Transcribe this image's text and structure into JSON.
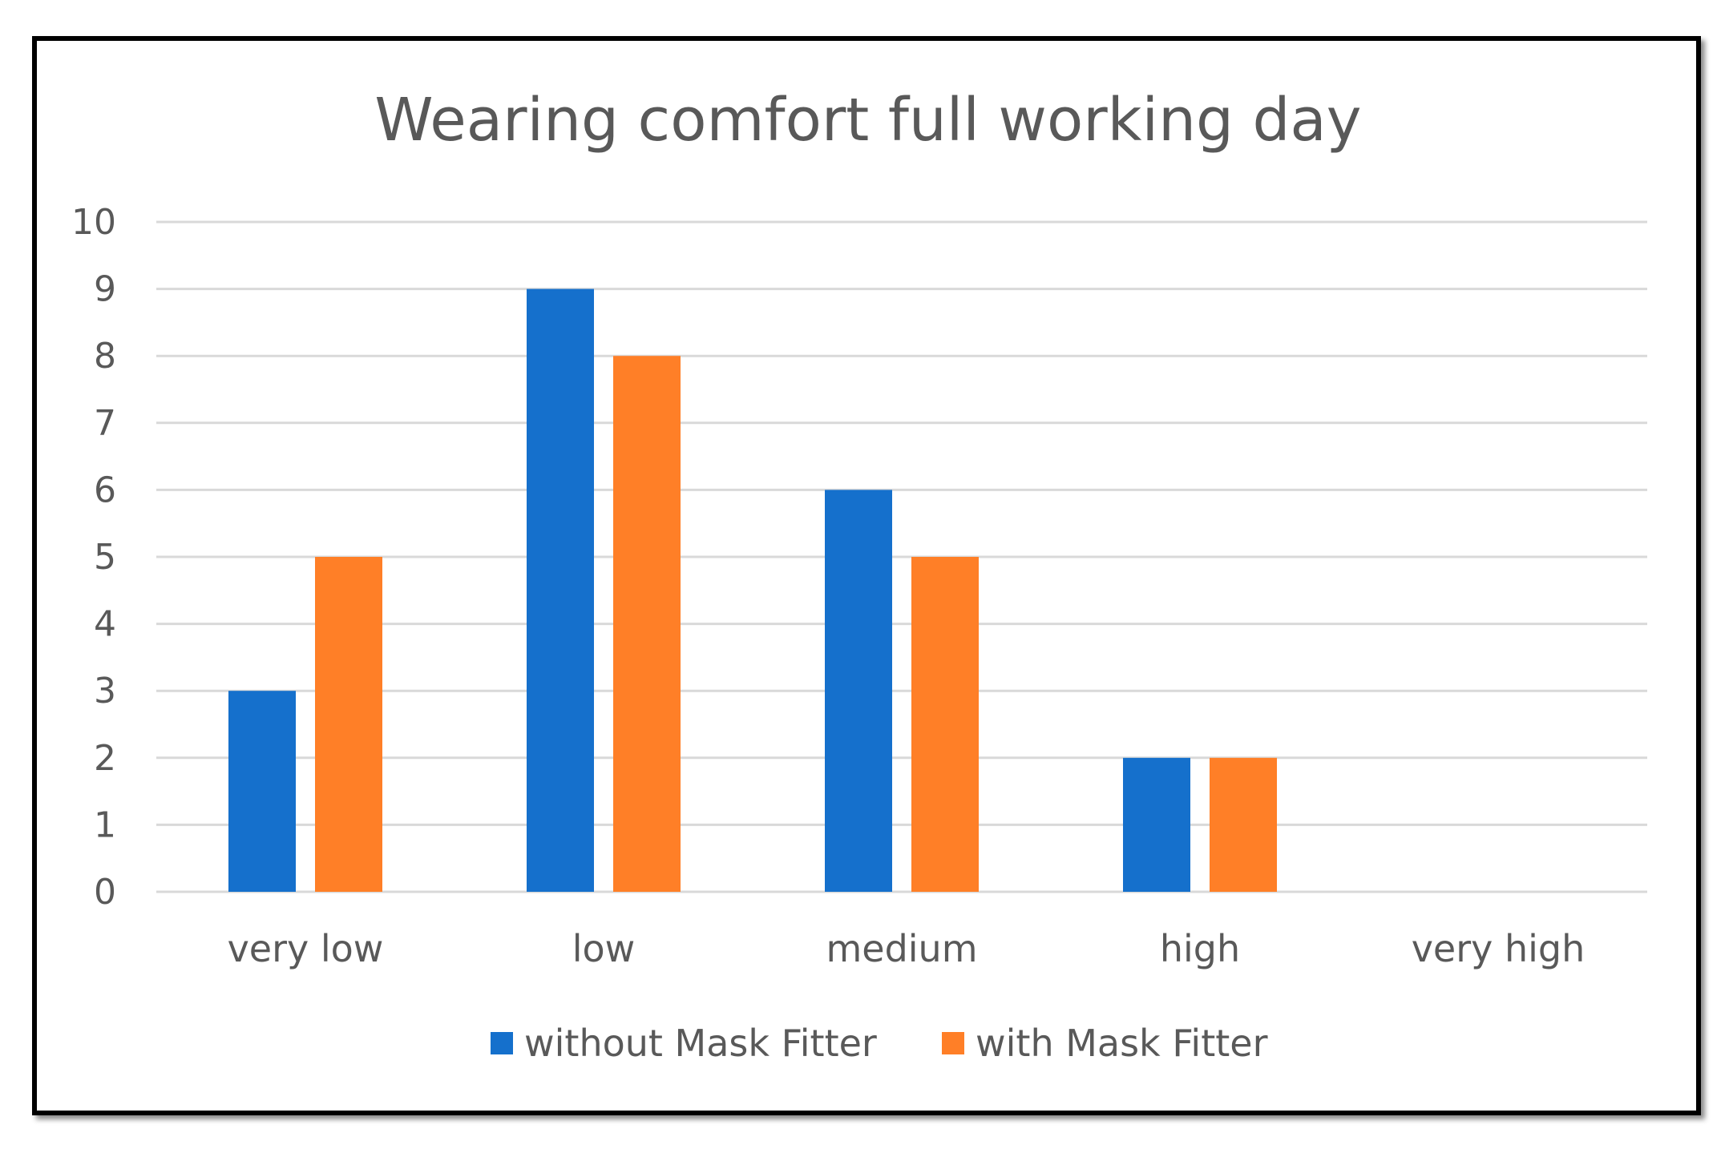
{
  "chart_data": {
    "type": "bar",
    "title": "Wearing comfort full working day",
    "xlabel": "",
    "ylabel": "",
    "categories": [
      "very low",
      "low",
      "medium",
      "high",
      "very high"
    ],
    "series": [
      {
        "name": "without Mask Fitter",
        "color": "#1570CC",
        "values": [
          3,
          9,
          6,
          2,
          0
        ]
      },
      {
        "name": "with Mask Fitter",
        "color": "#FF7F27",
        "values": [
          5,
          8,
          5,
          2,
          0
        ]
      }
    ],
    "ylim": [
      0,
      10
    ],
    "yticks": [
      "0",
      "1",
      "2",
      "3",
      "4",
      "5",
      "6",
      "7",
      "8",
      "9",
      "10"
    ],
    "grid": true,
    "legend_position": "bottom",
    "gridline_color": "#D9D9D9"
  }
}
